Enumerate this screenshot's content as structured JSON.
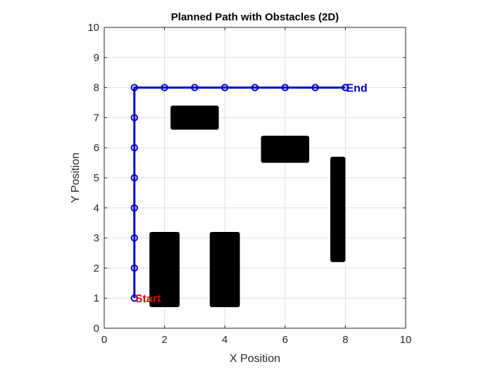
{
  "chart_data": {
    "type": "line",
    "title": "Planned Path with Obstacles (2D)",
    "xlabel": "X Position",
    "ylabel": "Y Position",
    "xlim": [
      0,
      10
    ],
    "ylim": [
      0,
      10
    ],
    "xticks": [
      0,
      2,
      4,
      6,
      8,
      10
    ],
    "yticks": [
      0,
      1,
      2,
      3,
      4,
      5,
      6,
      7,
      8,
      9,
      10
    ],
    "grid": true,
    "path": {
      "color": "#0000cc",
      "marker": "circle",
      "points": [
        [
          1,
          1
        ],
        [
          1,
          2
        ],
        [
          1,
          3
        ],
        [
          1,
          4
        ],
        [
          1,
          5
        ],
        [
          1,
          6
        ],
        [
          1,
          7
        ],
        [
          1,
          8
        ],
        [
          2,
          8
        ],
        [
          3,
          8
        ],
        [
          4,
          8
        ],
        [
          5,
          8
        ],
        [
          6,
          8
        ],
        [
          7,
          8
        ],
        [
          8,
          8
        ]
      ]
    },
    "obstacles": [
      {
        "x": [
          1.5,
          2.5
        ],
        "y": [
          0.7,
          3.2
        ]
      },
      {
        "x": [
          3.5,
          4.5
        ],
        "y": [
          0.7,
          3.2
        ]
      },
      {
        "x": [
          2.2,
          3.8
        ],
        "y": [
          6.6,
          7.4
        ]
      },
      {
        "x": [
          5.2,
          6.8
        ],
        "y": [
          5.5,
          6.4
        ]
      },
      {
        "x": [
          7.5,
          8.0
        ],
        "y": [
          2.2,
          5.7
        ]
      }
    ],
    "obstacle_color": "#000000",
    "annotations": [
      {
        "text": "Start",
        "x": 1,
        "y": 1,
        "color": "#e00000"
      },
      {
        "text": "End",
        "x": 8,
        "y": 8,
        "color": "#0000cc"
      }
    ]
  }
}
